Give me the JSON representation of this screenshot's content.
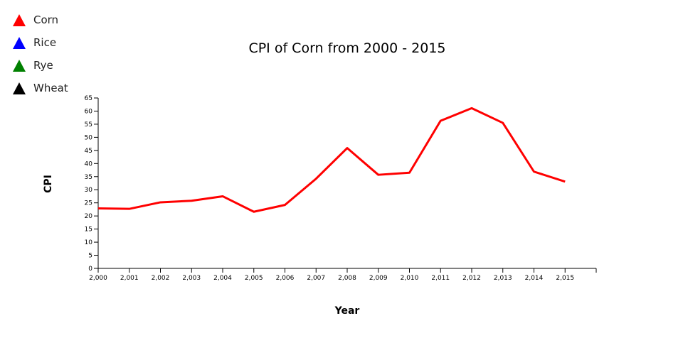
{
  "legend": [
    {
      "label": "Corn",
      "color": "#ff0000"
    },
    {
      "label": "Rice",
      "color": "#0000ff"
    },
    {
      "label": "Rye",
      "color": "#008000"
    },
    {
      "label": "Wheat",
      "color": "#000000"
    }
  ],
  "chart_data": {
    "type": "line",
    "title": "CPI of Corn from 2000 - 2015",
    "xlabel": "Year",
    "ylabel": "CPI",
    "x": [
      2000,
      2001,
      2002,
      2003,
      2004,
      2005,
      2006,
      2007,
      2008,
      2009,
      2010,
      2011,
      2012,
      2013,
      2014,
      2015
    ],
    "x_tick_labels": [
      "2,000",
      "2,001",
      "2,002",
      "2,003",
      "2,004",
      "2,005",
      "2,006",
      "2,007",
      "2,008",
      "2,009",
      "2,010",
      "2,011",
      "2,012",
      "2,013",
      "2,014",
      "2,015"
    ],
    "y_ticks": [
      0,
      5,
      10,
      15,
      20,
      25,
      30,
      35,
      40,
      45,
      50,
      55,
      60,
      65
    ],
    "xlim": [
      2000,
      2016
    ],
    "ylim": [
      0,
      65
    ],
    "grid": false,
    "legend_position": "top-left",
    "series": [
      {
        "name": "Corn",
        "color": "#ff0000",
        "values": [
          22.9,
          22.7,
          25.2,
          25.8,
          27.5,
          21.6,
          24.2,
          34.2,
          45.9,
          35.7,
          36.5,
          56.3,
          61.1,
          55.5,
          36.9,
          33.1
        ]
      }
    ]
  }
}
